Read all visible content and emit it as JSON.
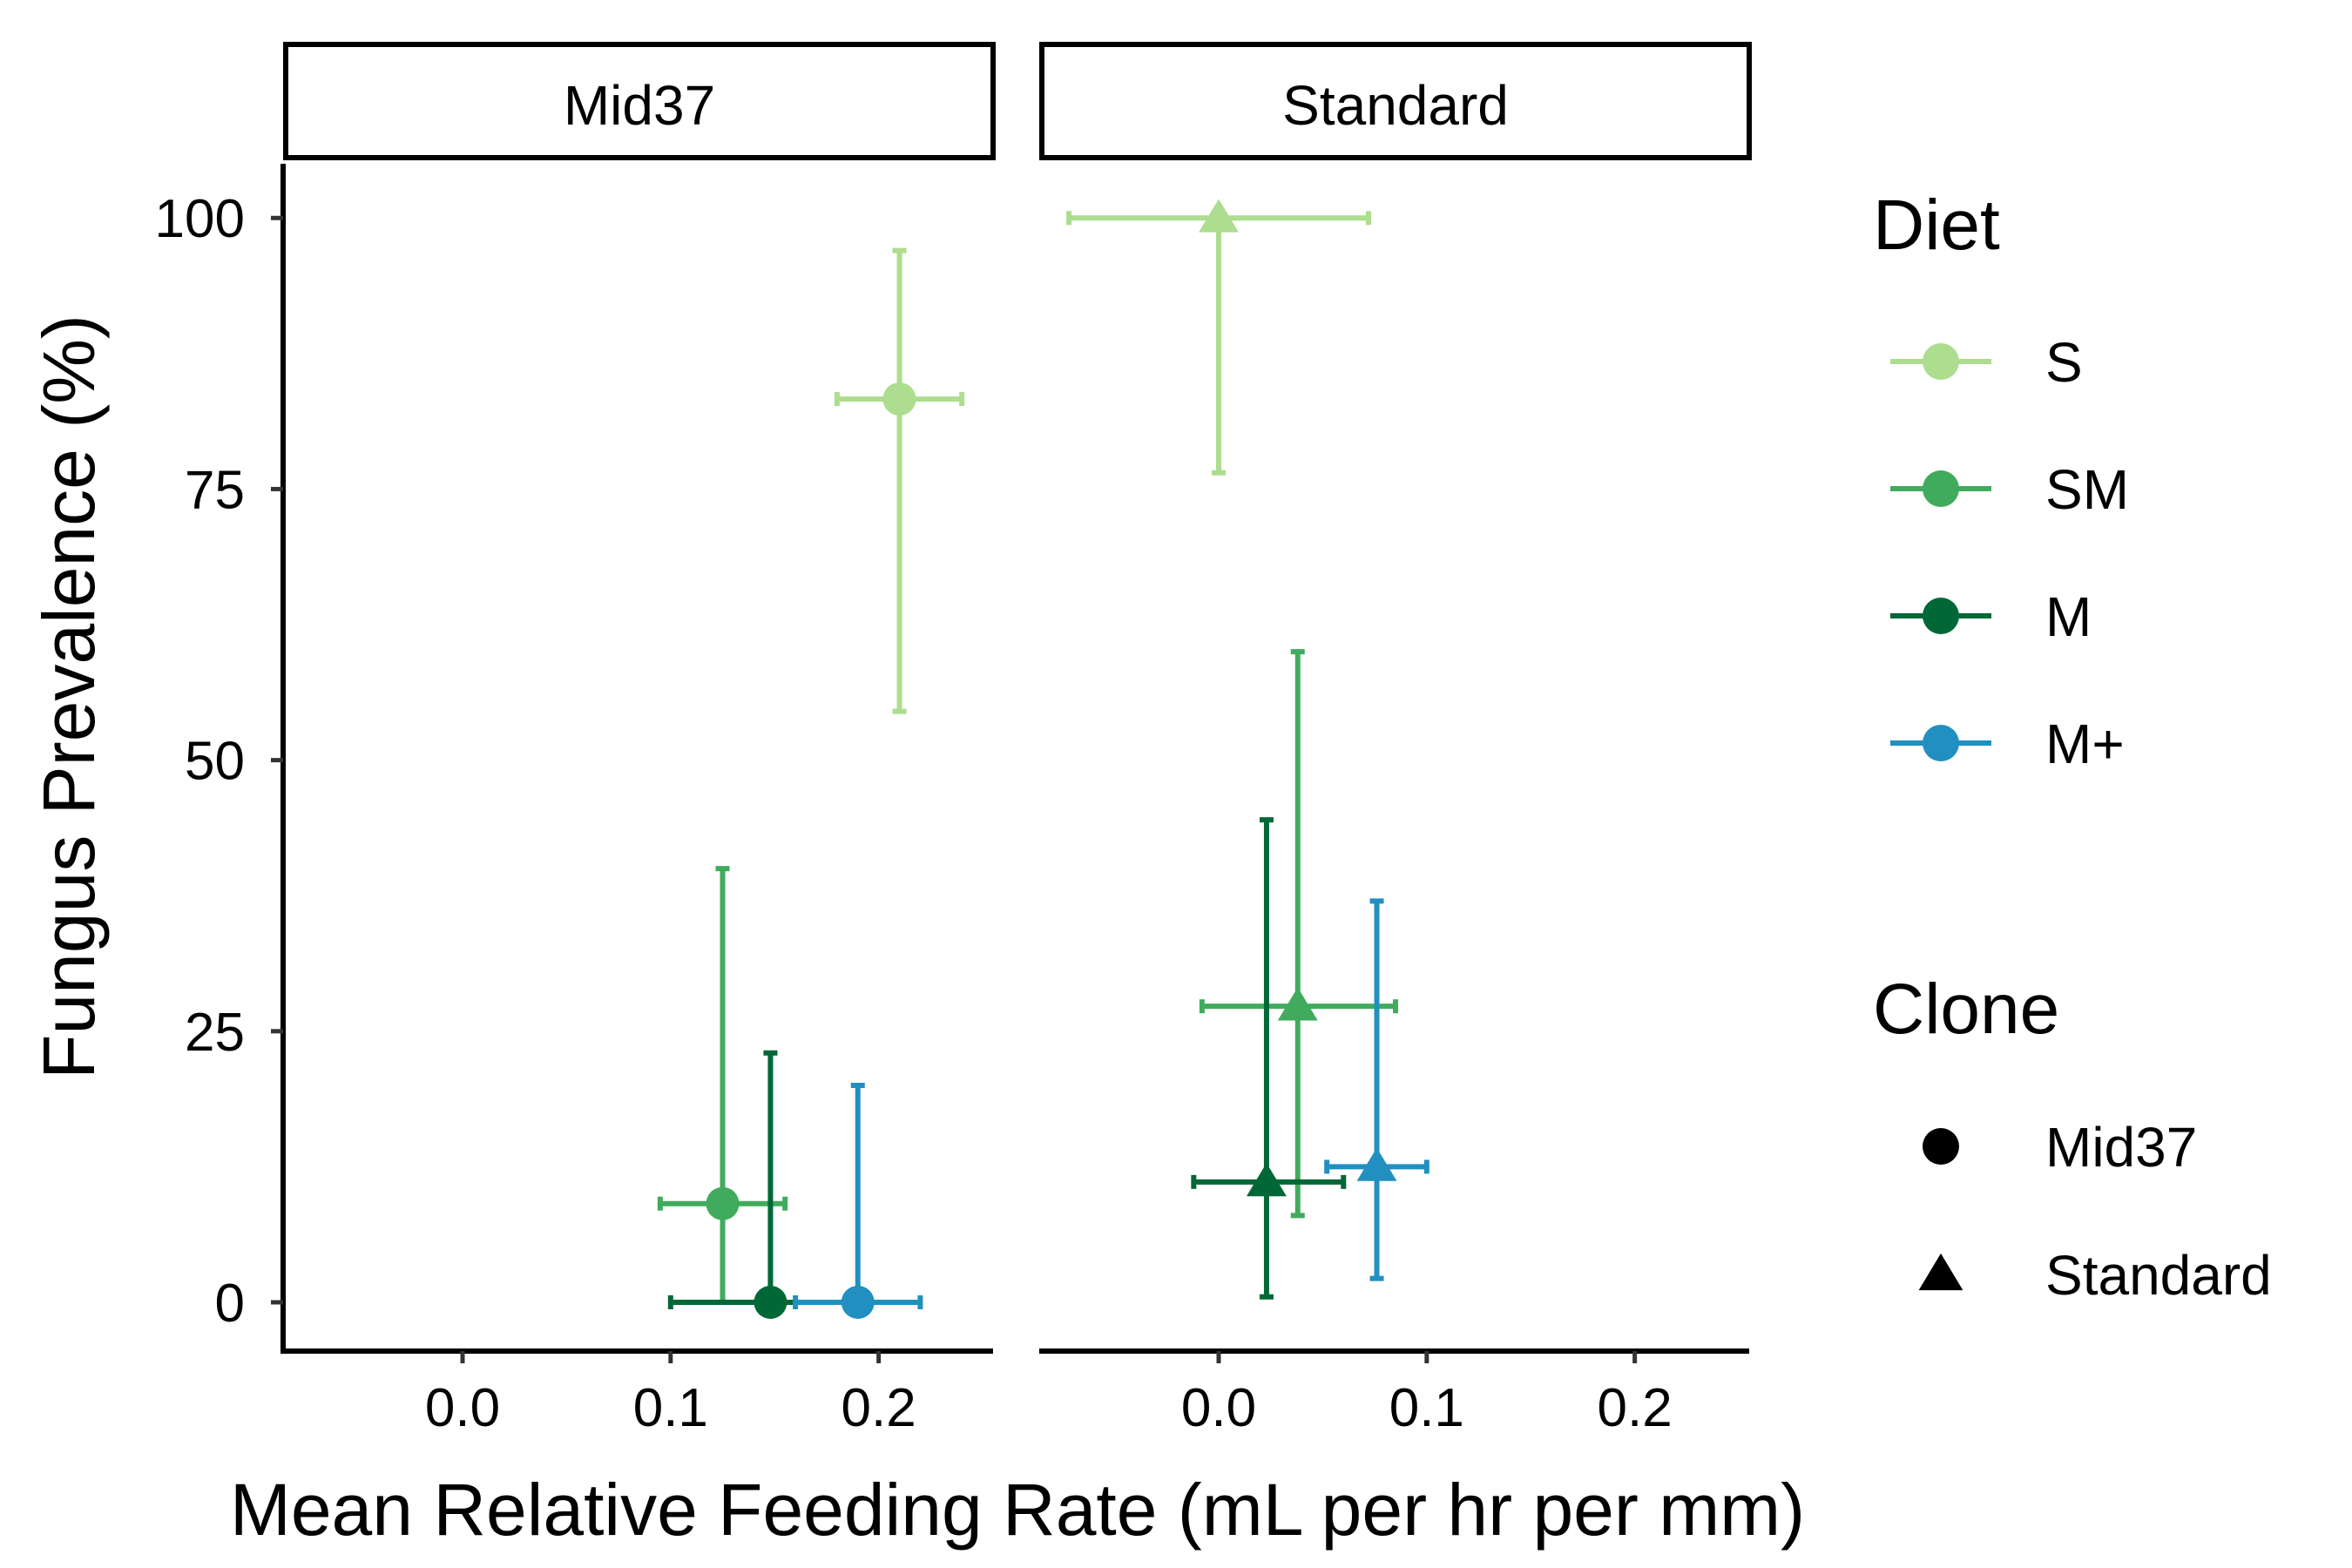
{
  "chart_data": {
    "type": "scatter",
    "xlabel": "Mean Relative Feeding Rate (mL per hr per mm)",
    "ylabel": "Fungus Prevalence (%)",
    "xlim": [
      -0.085,
      0.255
    ],
    "ylim": [
      -4.5,
      105
    ],
    "x_ticks": [
      0.0,
      0.1,
      0.2
    ],
    "x_tick_labels": [
      "0.0",
      "0.1",
      "0.2"
    ],
    "y_ticks": [
      0,
      25,
      50,
      75,
      100
    ],
    "y_tick_labels": [
      "0",
      "25",
      "50",
      "75",
      "100"
    ],
    "grid": false,
    "facets": [
      "Mid37",
      "Standard"
    ],
    "legend": {
      "position": "right",
      "diet_title": "Diet",
      "diet": [
        {
          "label": "S",
          "color": "#addd8e"
        },
        {
          "label": "SM",
          "color": "#41ab5d"
        },
        {
          "label": "M",
          "color": "#006837"
        },
        {
          "label": "M+",
          "color": "#2190c0"
        }
      ],
      "clone_title": "Clone",
      "clone": [
        {
          "label": "Mid37",
          "shape": "circle"
        },
        {
          "label": "Standard",
          "shape": "triangle"
        }
      ]
    },
    "points": [
      {
        "facet": "Mid37",
        "clone": "Mid37",
        "diet": "S",
        "x": 0.21,
        "x_low": 0.18,
        "x_high": 0.24,
        "y": 83.3,
        "y_low": 54.5,
        "y_high": 97.0
      },
      {
        "facet": "Mid37",
        "clone": "Mid37",
        "diet": "SM",
        "x": 0.125,
        "x_low": 0.095,
        "x_high": 0.155,
        "y": 9.1,
        "y_low": 0.0,
        "y_high": 40.0
      },
      {
        "facet": "Mid37",
        "clone": "Mid37",
        "diet": "M",
        "x": 0.148,
        "x_low": 0.1,
        "x_high": 0.19,
        "y": 0.0,
        "y_low": 0.0,
        "y_high": 23.0
      },
      {
        "facet": "Mid37",
        "clone": "Mid37",
        "diet": "M+",
        "x": 0.19,
        "x_low": 0.16,
        "x_high": 0.22,
        "y": 0.0,
        "y_low": 0.0,
        "y_high": 20.0
      },
      {
        "facet": "Standard",
        "clone": "Standard",
        "diet": "S",
        "x": 0.0,
        "x_low": -0.072,
        "x_high": 0.072,
        "y": 100.0,
        "y_low": 76.5,
        "y_high": 100.0
      },
      {
        "facet": "Standard",
        "clone": "Standard",
        "diet": "SM",
        "x": 0.038,
        "x_low": -0.008,
        "x_high": 0.085,
        "y": 27.3,
        "y_low": 8.0,
        "y_high": 60.0
      },
      {
        "facet": "Standard",
        "clone": "Standard",
        "diet": "M",
        "x": 0.023,
        "x_low": -0.012,
        "x_high": 0.06,
        "y": 11.1,
        "y_low": 0.5,
        "y_high": 44.5
      },
      {
        "facet": "Standard",
        "clone": "Standard",
        "diet": "M+",
        "x": 0.076,
        "x_low": 0.052,
        "x_high": 0.1,
        "y": 12.5,
        "y_low": 2.2,
        "y_high": 37.0
      }
    ]
  }
}
